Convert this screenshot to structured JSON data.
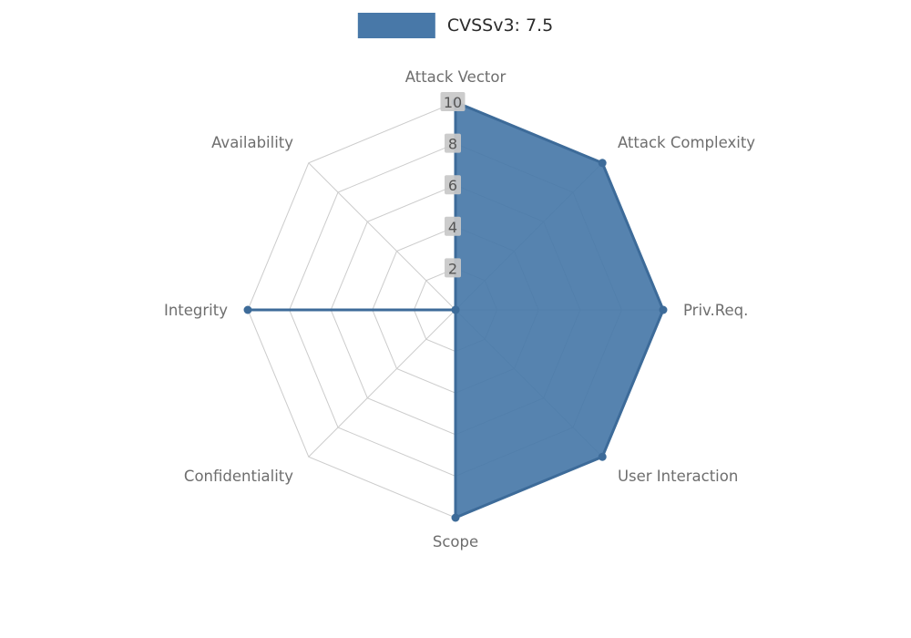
{
  "legend": {
    "label": "CVSSv3: 7.5"
  },
  "chart_data": {
    "type": "radar",
    "title": "",
    "categories": [
      "Attack Vector",
      "Attack Complexity",
      "Priv.Req.",
      "User Interaction",
      "Scope",
      "Confidentiality",
      "Integrity",
      "Availability"
    ],
    "series": [
      {
        "name": "CVSSv3: 7.5",
        "values": [
          10,
          10,
          10,
          10,
          10,
          0,
          10,
          0
        ]
      }
    ],
    "radial_ticks": [
      2,
      4,
      6,
      8,
      10
    ],
    "rlim": [
      0,
      10
    ],
    "grid": true,
    "legend_position": "top-center",
    "colors": {
      "fill": "#4878a8",
      "stroke": "#3d6b99",
      "grid": "#cccccc",
      "label": "#6e6e6e",
      "tick_text": "#555555",
      "tick_box": "#c8c8c8",
      "background": "#ffffff"
    }
  }
}
